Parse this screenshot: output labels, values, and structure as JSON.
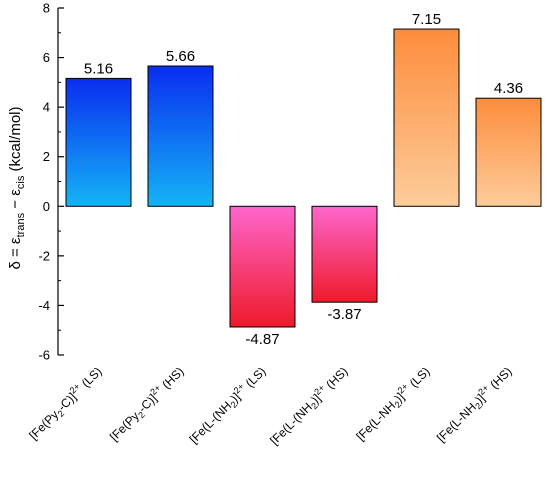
{
  "chart_data": {
    "type": "bar",
    "title": "",
    "xlabel": "",
    "ylabel": {
      "prefix": "δ = ε",
      "sub1": "trans",
      "middle": " − ε",
      "sub2": "cis",
      "suffix": " (kcal/mol)"
    },
    "ylim": [
      -6,
      8
    ],
    "yticks": [
      8,
      6,
      4,
      2,
      0,
      -2,
      -4,
      -6
    ],
    "grid": false,
    "legend": "none",
    "categories": [
      {
        "value": 5.16,
        "value_label": "5.16",
        "group": "blue",
        "label": [
          [
            "[Fe(Py",
            "n"
          ],
          [
            "2",
            "sub"
          ],
          [
            "-C)]",
            "n"
          ],
          [
            "2+",
            "sup"
          ],
          [
            " (LS)",
            "n"
          ]
        ]
      },
      {
        "value": 5.66,
        "value_label": "5.66",
        "group": "blue",
        "label": [
          [
            "[Fe(Py",
            "n"
          ],
          [
            "2",
            "sub"
          ],
          [
            "-C)]",
            "n"
          ],
          [
            "2+",
            "sup"
          ],
          [
            " (HS)",
            "n"
          ]
        ]
      },
      {
        "value": -4.87,
        "value_label": "-4.87",
        "group": "red",
        "label": [
          [
            "[Fe(L-(NH",
            "n"
          ],
          [
            "2",
            "sub"
          ],
          [
            ")]",
            "n"
          ],
          [
            "2+",
            "sup"
          ],
          [
            " (LS)",
            "n"
          ]
        ]
      },
      {
        "value": -3.87,
        "value_label": "-3.87",
        "group": "red",
        "label": [
          [
            "[Fe(L-(NH",
            "n"
          ],
          [
            "2",
            "sub"
          ],
          [
            ")]",
            "n"
          ],
          [
            "2+",
            "sup"
          ],
          [
            " (HS)",
            "n"
          ]
        ]
      },
      {
        "value": 7.15,
        "value_label": "7.15",
        "group": "orange",
        "label": [
          [
            "[Fe(L-NH",
            "n"
          ],
          [
            "2",
            "sub"
          ],
          [
            ")]",
            "n"
          ],
          [
            "2+",
            "sup"
          ],
          [
            " (LS)",
            "n"
          ]
        ]
      },
      {
        "value": 4.36,
        "value_label": "4.36",
        "group": "orange",
        "label": [
          [
            "[Fe(L-NH",
            "n"
          ],
          [
            "2",
            "sub"
          ],
          [
            ")]",
            "n"
          ],
          [
            "2+",
            "sup"
          ],
          [
            " (HS)",
            "n"
          ]
        ]
      }
    ],
    "colors": {
      "blue": {
        "top": "#0a2df0",
        "bottom": "#14b4f5"
      },
      "red": {
        "top": "#ff66cc",
        "bottom": "#ee1a2a"
      },
      "orange": {
        "top": "#fd8d3c",
        "bottom": "#fdcc9a"
      }
    }
  }
}
